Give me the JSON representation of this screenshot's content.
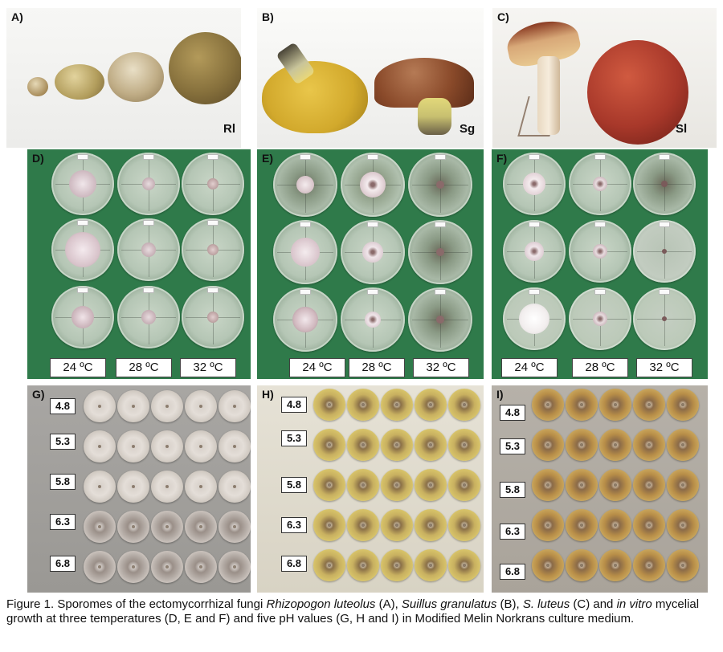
{
  "panels": {
    "a": {
      "label": "A)",
      "species_code": "Rl"
    },
    "b": {
      "label": "B)",
      "species_code": "Sg"
    },
    "c": {
      "label": "C)",
      "species_code": "Sl"
    },
    "d": {
      "label": "D)"
    },
    "e": {
      "label": "E)"
    },
    "f": {
      "label": "F)"
    },
    "g": {
      "label": "G)"
    },
    "h": {
      "label": "H)"
    },
    "i": {
      "label": "I)"
    }
  },
  "temperatures": [
    "24 ºC",
    "28 ºC",
    "32 ºC"
  ],
  "ph_values": [
    "4.8",
    "5.3",
    "5.8",
    "6.3",
    "6.8"
  ],
  "caption": {
    "p1": "Figure 1. Sporomes of the ectomycorrhizal fungi ",
    "rl": "Rhizopogon luteolus",
    "p2": " (A), ",
    "sg": "Suillus granulatus",
    "p3": " (B), ",
    "sl": "S. luteus",
    "p4": " (C) and ",
    "iv": "in vitro",
    "p5": " mycelial growth at three temperatures (D, E and F) and five pH values (G, H and I) in Modified Melin Norkrans culture medium."
  }
}
